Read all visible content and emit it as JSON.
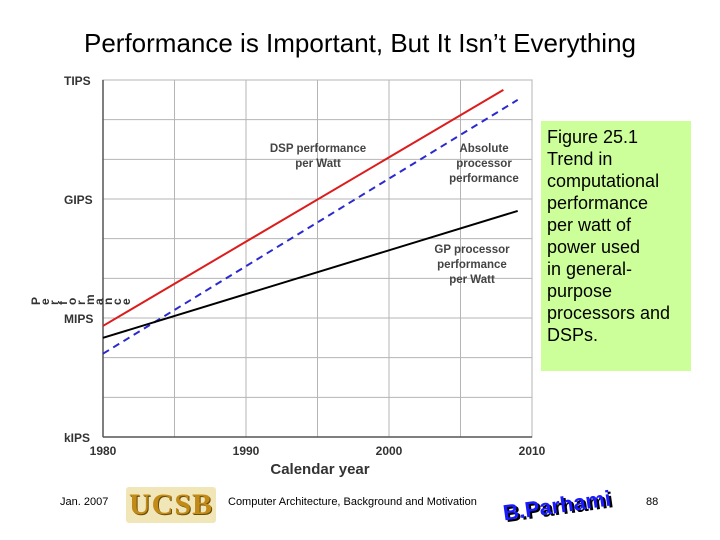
{
  "slide": {
    "title": "Performance is Important, But It Isn’t Everything",
    "caption_lines": [
      "Figure 25.1",
      "Trend in",
      "computational",
      "performance",
      "per watt of",
      "power used",
      "in general-",
      "purpose",
      "processors and",
      "DSPs."
    ],
    "footer_date": "Jan. 2007",
    "footer_center": "Computer Architecture, Background and Motivation",
    "page_number": "88",
    "ucsb_logo": "UCSB",
    "author_logo": "B.Parhami"
  },
  "chart_data": {
    "type": "line",
    "title": "",
    "xlabel": "Calendar year",
    "ylabel": "Performance",
    "xlim": [
      1980,
      2010
    ],
    "x_ticks": [
      1980,
      1990,
      2000,
      2010
    ],
    "y_ticks": [
      {
        "label": "kIPS",
        "log10_ips": 3
      },
      {
        "label": "MIPS",
        "log10_ips": 6
      },
      {
        "label": "GIPS",
        "log10_ips": 9
      },
      {
        "label": "TIPS",
        "log10_ips": 12
      }
    ],
    "ylim_log10_ips": [
      3,
      12
    ],
    "grid": true,
    "series": [
      {
        "name": "DSP performance per Watt",
        "label_lines": [
          "DSP performance",
          "per Watt"
        ],
        "color": "#dd1c1c",
        "dash": false,
        "x": [
          1980,
          2008
        ],
        "y_log10_ips": [
          5.8,
          11.75
        ]
      },
      {
        "name": "Absolute processor performance",
        "label_lines": [
          "Absolute",
          "processor",
          "performance"
        ],
        "color": "#2a2ad0",
        "dash": true,
        "x": [
          1980,
          2009
        ],
        "y_log10_ips": [
          5.1,
          11.5
        ]
      },
      {
        "name": "GP processor performance per Watt",
        "label_lines": [
          "GP processor",
          "performance",
          "per Watt"
        ],
        "color": "#000000",
        "dash": false,
        "x": [
          1980,
          2009
        ],
        "y_log10_ips": [
          5.5,
          8.7
        ]
      }
    ]
  }
}
